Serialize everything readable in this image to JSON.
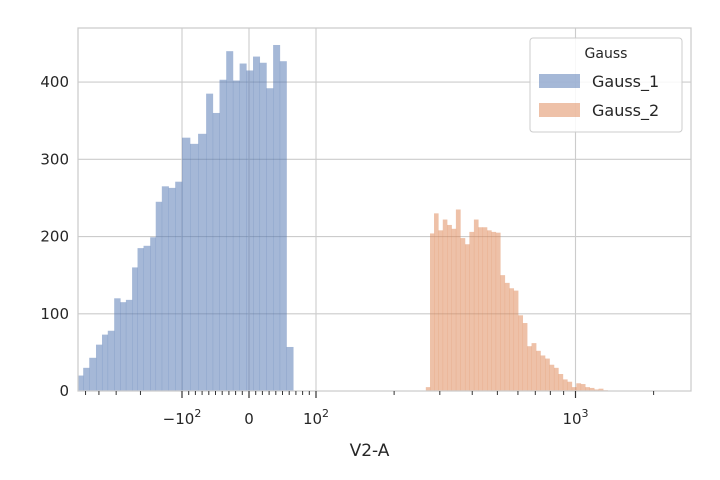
{
  "chart_data": {
    "type": "bar",
    "xlabel": "V2-A",
    "ylabel": "",
    "xscale": "symlog",
    "ylim": [
      0,
      470
    ],
    "yticks": [
      0,
      100,
      200,
      300,
      400
    ],
    "xticks": [
      {
        "value": -100,
        "label": "−10",
        "sup": "2"
      },
      {
        "value": 0,
        "label": "0",
        "sup": ""
      },
      {
        "value": 100,
        "label": "10",
        "sup": "2"
      },
      {
        "value": 1000,
        "label": "10",
        "sup": "3"
      }
    ],
    "grid": true,
    "legend": {
      "title": "Gauss",
      "position": "top-right"
    },
    "series": [
      {
        "name": "Gauss_1",
        "color": "#4c72b0",
        "opacity": 0.5,
        "bins": [
          [
            -700,
            -640,
            15
          ],
          [
            -640,
            -580,
            15
          ],
          [
            -580,
            -520,
            20
          ],
          [
            -520,
            -470,
            30
          ],
          [
            -470,
            -420,
            43
          ],
          [
            -420,
            -380,
            60
          ],
          [
            -380,
            -345,
            73
          ],
          [
            -345,
            -310,
            78
          ],
          [
            -310,
            -280,
            120
          ],
          [
            -280,
            -255,
            115
          ],
          [
            -255,
            -230,
            118
          ],
          [
            -230,
            -210,
            160
          ],
          [
            -210,
            -190,
            185
          ],
          [
            -190,
            -170,
            188
          ],
          [
            -170,
            -155,
            199
          ],
          [
            -155,
            -140,
            245
          ],
          [
            -140,
            -125,
            265
          ],
          [
            -125,
            -112,
            263
          ],
          [
            -112,
            -100,
            271
          ],
          [
            -100,
            -88,
            328
          ],
          [
            -88,
            -76,
            320
          ],
          [
            -76,
            -64,
            333
          ],
          [
            -64,
            -54,
            385
          ],
          [
            -54,
            -44,
            360
          ],
          [
            -44,
            -34,
            403
          ],
          [
            -34,
            -24,
            440
          ],
          [
            -24,
            -14,
            402
          ],
          [
            -14,
            -4,
            424
          ],
          [
            -4,
            6,
            415
          ],
          [
            6,
            16,
            433
          ],
          [
            16,
            26,
            425
          ],
          [
            26,
            36,
            392
          ],
          [
            36,
            46,
            448
          ],
          [
            46,
            56,
            427
          ],
          [
            56,
            66,
            57
          ]
        ]
      },
      {
        "name": "Gauss_2",
        "color": "#dd8452",
        "opacity": 0.5,
        "bins": [
          [
            265,
            275,
            5
          ],
          [
            275,
            285,
            204
          ],
          [
            285,
            296,
            230
          ],
          [
            296,
            308,
            208
          ],
          [
            308,
            320,
            222
          ],
          [
            320,
            333,
            215
          ],
          [
            333,
            346,
            210
          ],
          [
            346,
            360,
            235
          ],
          [
            360,
            375,
            198
          ],
          [
            375,
            390,
            190
          ],
          [
            390,
            406,
            206
          ],
          [
            406,
            422,
            222
          ],
          [
            422,
            439,
            212
          ],
          [
            439,
            456,
            212
          ],
          [
            456,
            474,
            208
          ],
          [
            474,
            493,
            206
          ],
          [
            493,
            513,
            205
          ],
          [
            513,
            534,
            150
          ],
          [
            534,
            556,
            140
          ],
          [
            556,
            578,
            133
          ],
          [
            578,
            601,
            130
          ],
          [
            601,
            626,
            98
          ],
          [
            626,
            651,
            88
          ],
          [
            651,
            677,
            58
          ],
          [
            677,
            705,
            62
          ],
          [
            705,
            733,
            52
          ],
          [
            733,
            763,
            46
          ],
          [
            763,
            794,
            42
          ],
          [
            794,
            826,
            34
          ],
          [
            826,
            859,
            30
          ],
          [
            859,
            894,
            22
          ],
          [
            894,
            930,
            15
          ],
          [
            930,
            968,
            12
          ],
          [
            968,
            1007,
            5
          ],
          [
            1007,
            1048,
            10
          ],
          [
            1048,
            1090,
            9
          ],
          [
            1090,
            1134,
            5
          ],
          [
            1134,
            1180,
            4
          ],
          [
            1180,
            1228,
            2
          ],
          [
            1228,
            1278,
            3
          ],
          [
            1278,
            1330,
            1
          ]
        ]
      }
    ]
  }
}
